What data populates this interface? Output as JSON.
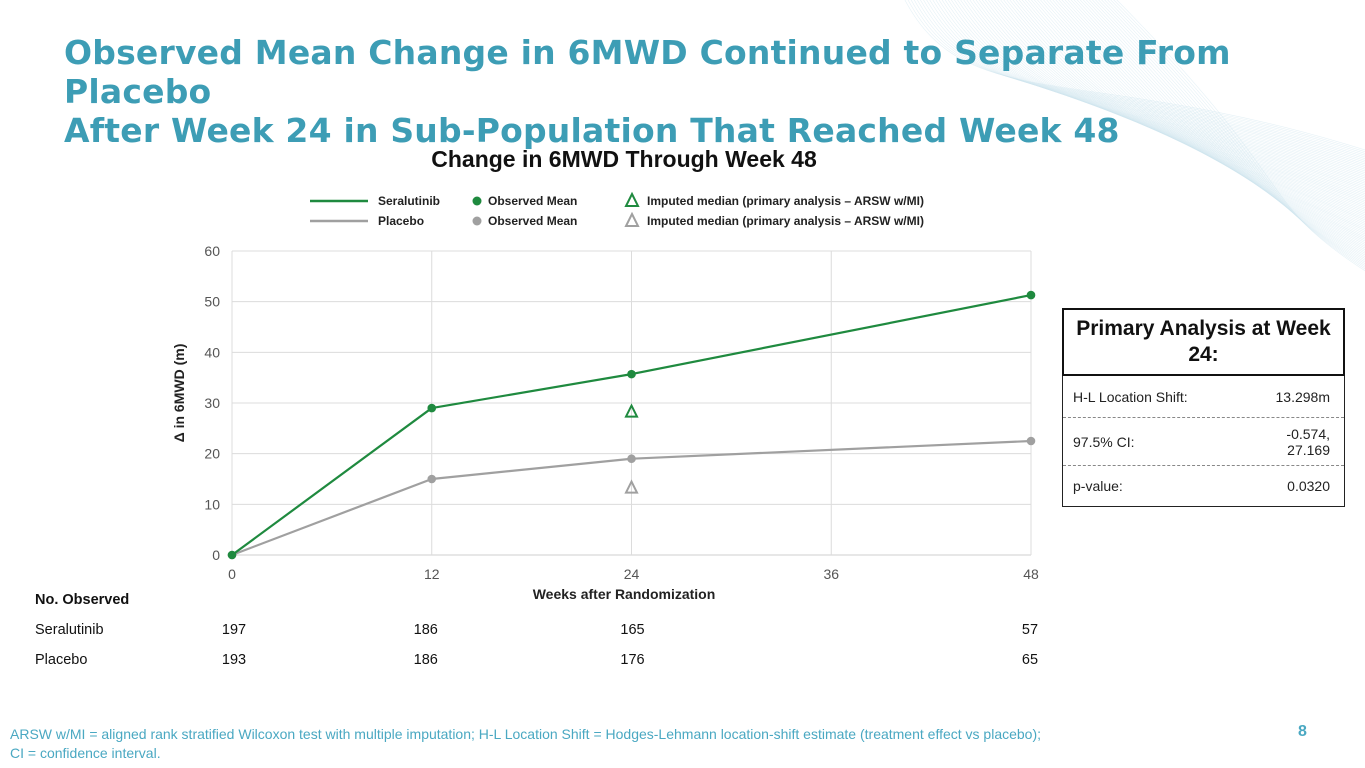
{
  "slide": {
    "title_line1": "Observed Mean Change in 6MWD Continued to Separate From Placebo",
    "title_line2": "After Week 24 in Sub-Population That Reached Week 48",
    "page_number": "8",
    "footnote_line1": "ARSW w/MI = aligned rank stratified Wilcoxon test with multiple imputation; H-L Location Shift = Hodges-Lehmann location-shift estimate (treatment effect vs placebo);",
    "footnote_line2": "CI = confidence interval.",
    "colors": {
      "title": "#3d9db5",
      "seralutinib": "#1f8a3f",
      "placebo": "#a0a0a0",
      "footnote": "#4aa8c2"
    }
  },
  "chart_data": {
    "type": "line",
    "title": "Change in 6MWD Through Week 48",
    "xlabel": "Weeks after Randomization",
    "ylabel": "Δ in 6MWD (m)",
    "x": [
      0,
      12,
      24,
      48
    ],
    "xticks": [
      0,
      12,
      24,
      36,
      48
    ],
    "yticks": [
      0,
      10,
      20,
      30,
      40,
      50,
      60
    ],
    "xlim": [
      0,
      48
    ],
    "ylim": [
      0,
      60
    ],
    "grid": true,
    "legend_position": "top",
    "legend": [
      {
        "line": "Seralutinib",
        "marker": "Observed Mean",
        "triangle": "Imputed median (primary analysis – ARSW w/MI)"
      },
      {
        "line": "Placebo",
        "marker": "Observed Mean",
        "triangle": "Imputed median (primary analysis – ARSW w/MI)"
      }
    ],
    "series": [
      {
        "name": "Seralutinib",
        "color": "#1f8a3f",
        "values": [
          0,
          29.0,
          35.7,
          51.3
        ],
        "imputed_median": {
          "x": 24,
          "y": 28.3
        }
      },
      {
        "name": "Placebo",
        "color": "#a0a0a0",
        "values": [
          0,
          15.0,
          19.0,
          22.5
        ],
        "imputed_median": {
          "x": 24,
          "y": 13.3
        }
      }
    ]
  },
  "no_observed": {
    "heading": "No. Observed",
    "rows": [
      {
        "label": "Seralutinib",
        "values": [
          "197",
          "186",
          "165",
          "57"
        ]
      },
      {
        "label": "Placebo",
        "values": [
          "193",
          "186",
          "176",
          "65"
        ]
      }
    ]
  },
  "primary_analysis": {
    "heading": "Primary Analysis at Week 24:",
    "rows": [
      {
        "label": "H-L Location Shift:",
        "value": "13.298m"
      },
      {
        "label": "97.5% CI:",
        "value_line1": "-0.574,",
        "value_line2": "27.169"
      },
      {
        "label": "p-value:",
        "value": "0.0320"
      }
    ]
  }
}
